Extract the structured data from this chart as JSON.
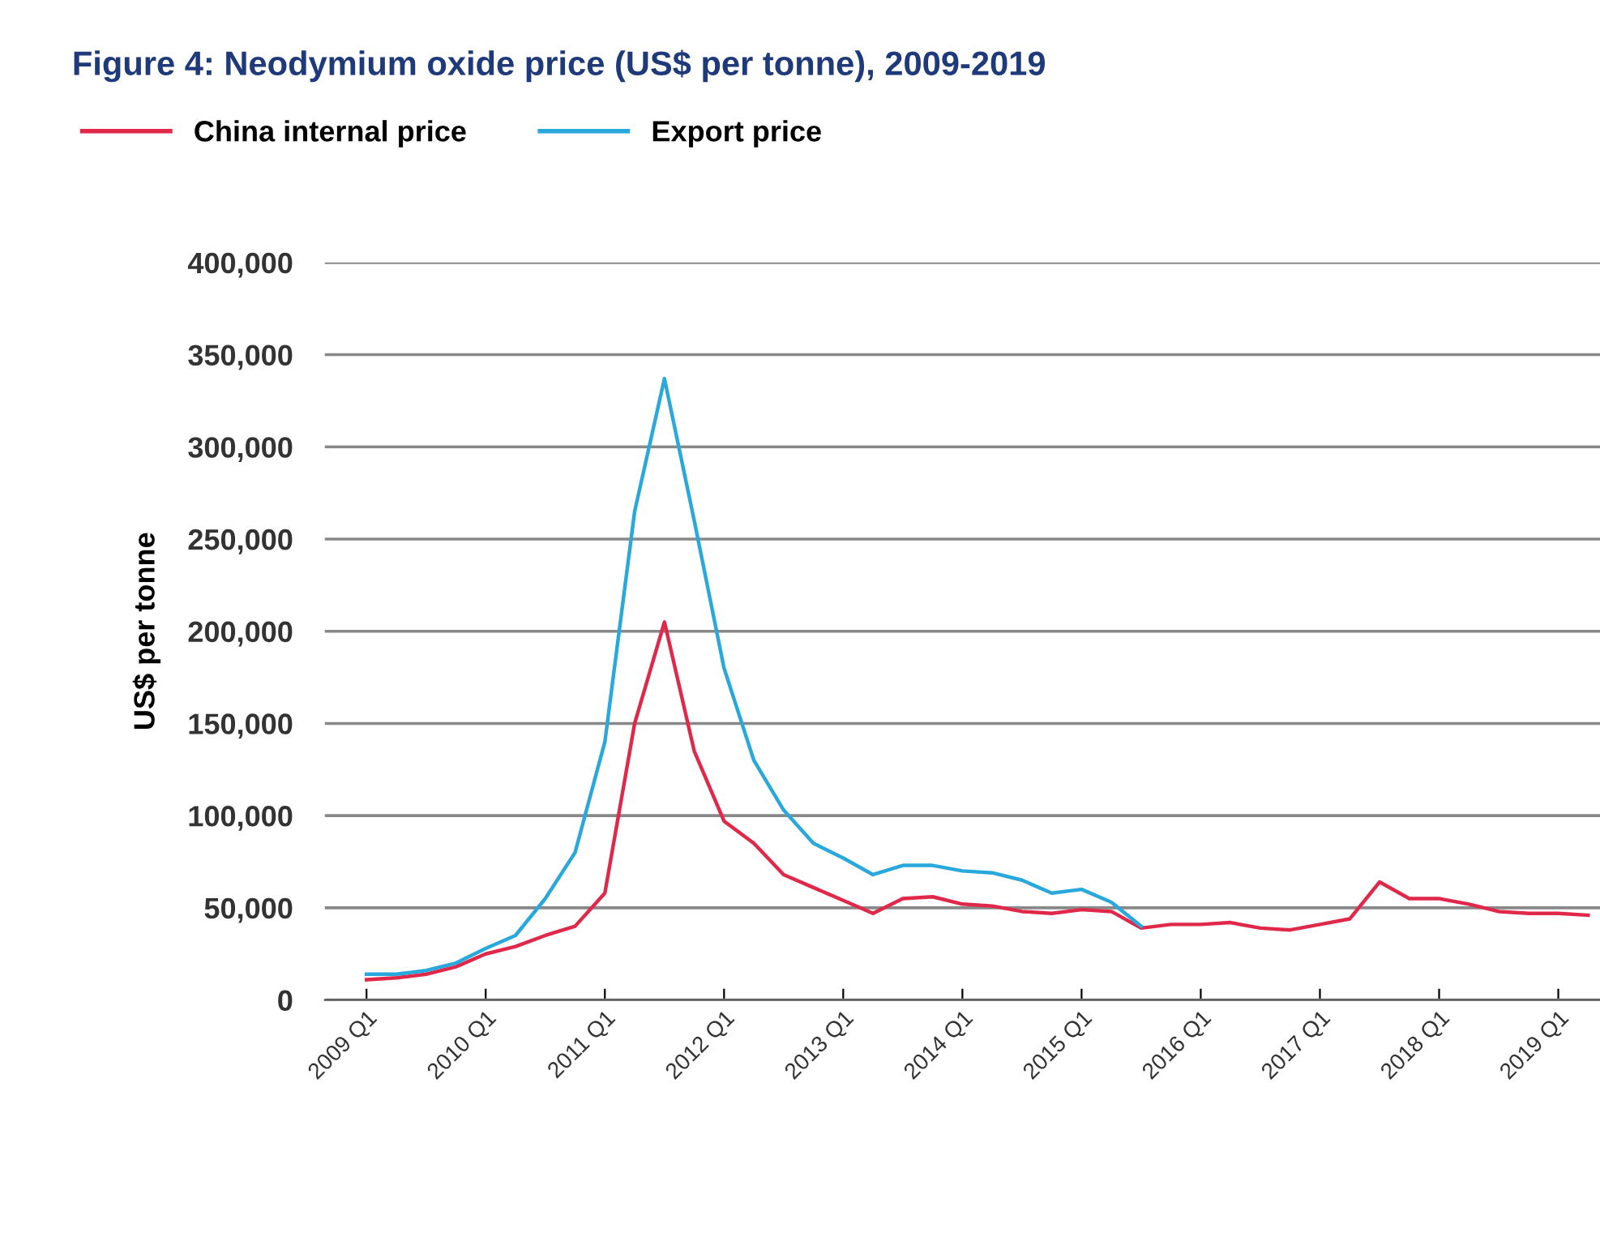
{
  "chart_data": {
    "type": "line",
    "title": "Figure 4: Neodymium oxide price (US$ per tonne), 2009-2019",
    "ylabel": "US$ per tonne",
    "categories": [
      "2009 Q1",
      null,
      null,
      null,
      "2010 Q1",
      null,
      null,
      null,
      "2011 Q1",
      null,
      null,
      null,
      "2012 Q1",
      null,
      null,
      null,
      "2013 Q1",
      null,
      null,
      null,
      "2014 Q1",
      null,
      null,
      null,
      "2015 Q1",
      null,
      null,
      null,
      "2016 Q1",
      null,
      null,
      null,
      "2017 Q1",
      null,
      null,
      null,
      "2018 Q1",
      null,
      null,
      null,
      "2019 Q1",
      null
    ],
    "ylim": [
      0,
      400000
    ],
    "yticks": [
      {
        "value": 0,
        "label": "0"
      },
      {
        "value": 50000,
        "label": "50,000"
      },
      {
        "value": 100000,
        "label": "100,000"
      },
      {
        "value": 150000,
        "label": "150,000"
      },
      {
        "value": 200000,
        "label": "200,000"
      },
      {
        "value": 250000,
        "label": "250,000"
      },
      {
        "value": 300000,
        "label": "300,000"
      },
      {
        "value": 350000,
        "label": "350,000"
      },
      {
        "value": 400000,
        "label": "400,000"
      }
    ],
    "grid": "y",
    "legend": "top left",
    "marker": "none",
    "line_style": "solid",
    "series": [
      {
        "name": "China internal price",
        "color": "#e0284a",
        "values": [
          11000,
          12000,
          14000,
          18000,
          25000,
          29000,
          35000,
          40000,
          58000,
          150000,
          205000,
          135000,
          97000,
          85000,
          68000,
          61000,
          54000,
          47000,
          55000,
          56000,
          52000,
          51000,
          48000,
          47000,
          49000,
          48000,
          39000,
          41000,
          41000,
          42000,
          39000,
          38000,
          41000,
          44000,
          64000,
          55000,
          55000,
          52000,
          48000,
          47000,
          47000,
          46000
        ]
      },
      {
        "name": "Export price",
        "color": "#29a8dc",
        "values": [
          14000,
          14000,
          16000,
          20000,
          28000,
          35000,
          55000,
          80000,
          140000,
          265000,
          337000,
          260000,
          180000,
          130000,
          103000,
          85000,
          77000,
          68000,
          73000,
          73000,
          70000,
          69000,
          65000,
          58000,
          60000,
          53000,
          40000,
          null,
          null,
          null,
          null,
          null,
          null,
          null,
          null,
          null,
          null,
          null,
          null,
          null,
          null,
          null
        ]
      }
    ]
  }
}
